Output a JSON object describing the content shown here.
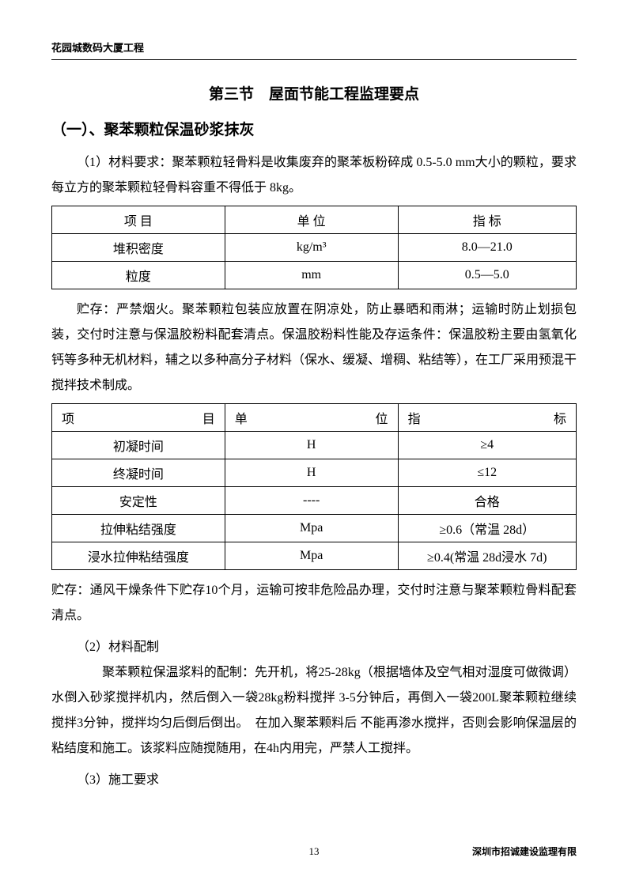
{
  "header": {
    "project": "花园城数码大厦工程"
  },
  "section": {
    "title": "第三节　屋面节能工程监理要点"
  },
  "subsection1": {
    "title": "（一）、聚苯颗粒保温砂浆抹灰"
  },
  "para1": "（1）材料要求：聚苯颗粒轻骨料是收集废弃的聚苯板粉碎成 0.5-5.0 mm大小的颗粒，要求每立方的聚苯颗粒轻骨料容重不得低于 8kg。",
  "table1": {
    "columns": [
      "项 目",
      "单 位",
      "指 标"
    ],
    "rows": [
      [
        "堆积密度",
        "kg/m³",
        "8.0—21.0"
      ],
      [
        "粒度",
        "mm",
        "0.5—5.0"
      ]
    ]
  },
  "para2": "贮存：严禁烟火。聚苯颗粒包装应放置在阴凉处，防止暴晒和雨淋；运输时防止划损包装，交付时注意与保温胶粉料配套清点。保温胶粉料性能及存运条件：保温胶粉主要由氢氧化钙等多种无机材料，辅之以多种高分子材料（保水、缓凝、增稠、粘结等），在工厂采用预混干搅拌技术制成。",
  "table2": {
    "header_cells": [
      {
        "left": "项",
        "right": "目"
      },
      {
        "left": "单",
        "right": "位"
      },
      {
        "left": "指",
        "right": "标"
      }
    ],
    "rows": [
      [
        "初凝时间",
        "H",
        "≥4"
      ],
      [
        "终凝时间",
        "H",
        "≤12"
      ],
      [
        "安定性",
        "----",
        "合格"
      ],
      [
        "拉伸粘结强度",
        "Mpa",
        "≥0.6（常温 28d）"
      ],
      [
        "浸水拉伸粘结强度",
        "Mpa",
        "≥0.4(常温 28d浸水 7d)"
      ]
    ]
  },
  "para3": "贮存：通风干燥条件下贮存10个月，运输可按非危险品办理，交付时注意与聚苯颗粒骨料配套清点。",
  "sub2_heading": "（2）材料配制",
  "para4": "　　聚苯颗粒保温浆料的配制：先开机，将25-28kg（根据墙体及空气相对湿度可做微调）水倒入砂浆搅拌机内，然后倒入一袋28kg粉料搅拌 3-5分钟后，再倒入一袋200L聚苯颗粒继续搅拌3分钟，搅拌均匀后倒后倒出。　在加入聚苯颗料后   不能再渗水搅拌，否则会影响保温层的粘结度和施工。该浆料应随搅随用，在4h内用完，严禁人工搅拌。",
  "sub3_heading": "（3）施工要求",
  "footer": {
    "page": "13",
    "company": "深圳市招诚建设监理有限"
  }
}
